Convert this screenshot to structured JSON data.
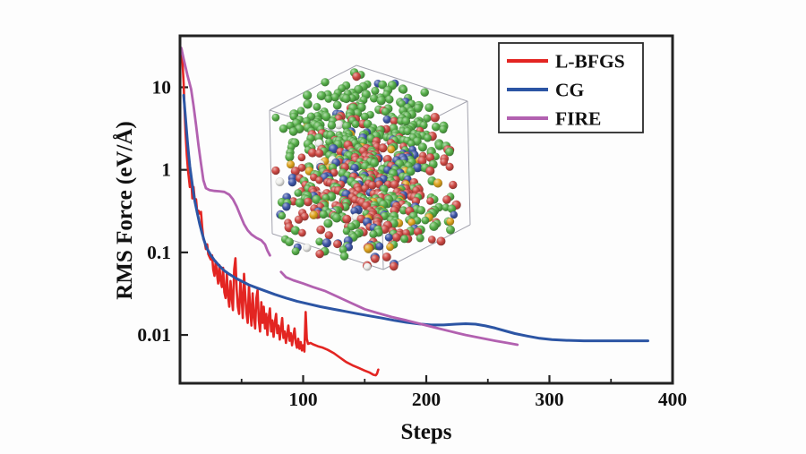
{
  "figure": {
    "background": "#fdfdfd",
    "axis_color": "#222222",
    "tick_label_color": "#111111"
  },
  "chart_data": {
    "type": "line",
    "title": "",
    "xlabel": "Steps",
    "ylabel": "RMS Force (eV/Å)",
    "grid": false,
    "x_axis": {
      "min": 0,
      "max": 400,
      "major_ticks": [
        100,
        200,
        300,
        400
      ],
      "minor_ticks": [
        50,
        150,
        250,
        350
      ]
    },
    "y_axis": {
      "scale": "log",
      "min": 0.0026,
      "max": 42,
      "major_ticks": [
        {
          "value": 10,
          "label": "10"
        },
        {
          "value": 1,
          "label": "1"
        },
        {
          "value": 0.1,
          "label": "0.1"
        },
        {
          "value": 0.01,
          "label": "0.01"
        }
      ]
    },
    "legend": {
      "position": "top-right"
    },
    "series": [
      {
        "name": "L-BFGS",
        "color": "#e32522",
        "width": 2.6,
        "segments": [
          [
            [
              1.5,
              28
            ],
            [
              2,
              20
            ],
            [
              3,
              11
            ],
            [
              3.6,
              6
            ],
            [
              4.5,
              2.8
            ],
            [
              5.5,
              1.5
            ],
            [
              6.5,
              1.0
            ],
            [
              8,
              0.62
            ],
            [
              9,
              0.8
            ],
            [
              10,
              0.45
            ],
            [
              11,
              0.62
            ],
            [
              12,
              0.42
            ],
            [
              13,
              0.44
            ],
            [
              14,
              0.3
            ],
            [
              15,
              0.32
            ],
            [
              16,
              0.295
            ],
            [
              17,
              0.31
            ],
            [
              18,
              0.2
            ],
            [
              19,
              0.145
            ],
            [
              20,
              0.135
            ],
            [
              21,
              0.11
            ],
            [
              22,
              0.125
            ],
            [
              23,
              0.095
            ],
            [
              24,
              0.088
            ],
            [
              25,
              0.082
            ],
            [
              26,
              0.092
            ],
            [
              27,
              0.062
            ],
            [
              28,
              0.052
            ],
            [
              29,
              0.078
            ],
            [
              30,
              0.055
            ],
            [
              31,
              0.042
            ],
            [
              32,
              0.07
            ],
            [
              33,
              0.045
            ],
            [
              34,
              0.038
            ],
            [
              35,
              0.065
            ],
            [
              36,
              0.033
            ],
            [
              37,
              0.028
            ],
            [
              38,
              0.055
            ],
            [
              39,
              0.03
            ],
            [
              40,
              0.022
            ],
            [
              41,
              0.045
            ],
            [
              42,
              0.028
            ],
            [
              43,
              0.02
            ],
            [
              44,
              0.062
            ],
            [
              45,
              0.085
            ],
            [
              46,
              0.035
            ],
            [
              47,
              0.022
            ],
            [
              48,
              0.018
            ],
            [
              49,
              0.045
            ],
            [
              50,
              0.028
            ],
            [
              51,
              0.016
            ],
            [
              52,
              0.055
            ],
            [
              53,
              0.03
            ],
            [
              54,
              0.018
            ],
            [
              55,
              0.014
            ],
            [
              56,
              0.04
            ],
            [
              57,
              0.02
            ],
            [
              58,
              0.013
            ],
            [
              59,
              0.032
            ],
            [
              60,
              0.017
            ],
            [
              61,
              0.012
            ],
            [
              62,
              0.028
            ],
            [
              63,
              0.035
            ],
            [
              64,
              0.015
            ],
            [
              65,
              0.011
            ],
            [
              66,
              0.025
            ],
            [
              67,
              0.014
            ],
            [
              68,
              0.022
            ],
            [
              69,
              0.012
            ],
            [
              70,
              0.018
            ],
            [
              71,
              0.01
            ],
            [
              72,
              0.016
            ],
            [
              73,
              0.021
            ],
            [
              74,
              0.011
            ],
            [
              75,
              0.015
            ],
            [
              76,
              0.0095
            ],
            [
              77,
              0.014
            ],
            [
              78,
              0.018
            ],
            [
              79,
              0.0105
            ],
            [
              80,
              0.013
            ],
            [
              81,
              0.0088
            ],
            [
              82,
              0.012
            ],
            [
              83,
              0.016
            ],
            [
              84,
              0.0092
            ],
            [
              85,
              0.011
            ],
            [
              86,
              0.008
            ],
            [
              87,
              0.01
            ],
            [
              88,
              0.013
            ],
            [
              89,
              0.0085
            ],
            [
              90,
              0.0105
            ],
            [
              91,
              0.0075
            ],
            [
              92,
              0.0095
            ],
            [
              93,
              0.012
            ],
            [
              94,
              0.008
            ],
            [
              95,
              0.007
            ],
            [
              96,
              0.009
            ],
            [
              97,
              0.0068
            ],
            [
              98,
              0.0082
            ],
            [
              99,
              0.0065
            ],
            [
              100,
              0.0075
            ],
            [
              101,
              0.0063
            ],
            [
              102,
              0.019
            ],
            [
              103,
              0.009
            ],
            [
              104,
              0.0078
            ],
            [
              106,
              0.008
            ],
            [
              108,
              0.0077
            ],
            [
              112,
              0.0073
            ],
            [
              116,
              0.007
            ],
            [
              120,
              0.0066
            ],
            [
              125,
              0.006
            ],
            [
              130,
              0.0053
            ],
            [
              135,
              0.0047
            ],
            [
              140,
              0.0043
            ],
            [
              145,
              0.004
            ],
            [
              150,
              0.0037
            ],
            [
              154,
              0.0035
            ],
            [
              157,
              0.0033
            ],
            [
              159,
              0.00325
            ],
            [
              160,
              0.0034
            ],
            [
              161,
              0.0038
            ]
          ]
        ]
      },
      {
        "name": "CG",
        "color": "#2c55a4",
        "width": 3.0,
        "segments": [
          [
            [
              3,
              8
            ],
            [
              4,
              5.2
            ],
            [
              5,
              3.4
            ],
            [
              6,
              2.2
            ],
            [
              7,
              1.55
            ],
            [
              8,
              1.1
            ],
            [
              9,
              0.85
            ],
            [
              10,
              0.66
            ],
            [
              11,
              0.52
            ],
            [
              12,
              0.42
            ],
            [
              14,
              0.3
            ],
            [
              16,
              0.22
            ],
            [
              18,
              0.168
            ],
            [
              20,
              0.133
            ],
            [
              22,
              0.11
            ],
            [
              25,
              0.0925
            ],
            [
              28,
              0.08
            ],
            [
              32,
              0.0685
            ],
            [
              36,
              0.06
            ],
            [
              40,
              0.0545
            ],
            [
              45,
              0.049
            ],
            [
              50,
              0.0448
            ],
            [
              56,
              0.0405
            ],
            [
              62,
              0.0373
            ],
            [
              69,
              0.0342
            ],
            [
              77,
              0.031
            ],
            [
              86,
              0.028
            ],
            [
              95,
              0.0256
            ],
            [
              104,
              0.0238
            ],
            [
              114,
              0.022
            ],
            [
              124,
              0.0206
            ],
            [
              134,
              0.0193
            ],
            [
              144,
              0.0181
            ],
            [
              154,
              0.017
            ],
            [
              164,
              0.016
            ],
            [
              174,
              0.015
            ],
            [
              184,
              0.0142
            ],
            [
              194,
              0.0136
            ],
            [
              204,
              0.0132
            ],
            [
              214,
              0.0132
            ],
            [
              224,
              0.0135
            ],
            [
              232,
              0.0137
            ],
            [
              240,
              0.0135
            ],
            [
              248,
              0.0129
            ],
            [
              256,
              0.0121
            ],
            [
              264,
              0.0112
            ],
            [
              272,
              0.0104
            ],
            [
              282,
              0.0097
            ],
            [
              292,
              0.0091
            ],
            [
              302,
              0.0088
            ],
            [
              314,
              0.0086
            ],
            [
              328,
              0.0085
            ],
            [
              342,
              0.0085
            ],
            [
              356,
              0.0085
            ],
            [
              370,
              0.0085
            ],
            [
              380,
              0.0085
            ]
          ]
        ]
      },
      {
        "name": "FIRE",
        "color": "#b261b0",
        "width": 2.8,
        "segments": [
          [
            [
              1,
              30
            ],
            [
              3,
              22
            ],
            [
              6,
              14
            ],
            [
              9,
              9.5
            ],
            [
              11,
              6.0
            ],
            [
              13,
              3.5
            ],
            [
              15,
              2.0
            ],
            [
              17,
              1.2
            ],
            [
              19,
              0.75
            ],
            [
              21,
              0.6
            ],
            [
              24,
              0.57
            ],
            [
              28,
              0.555
            ],
            [
              32,
              0.55
            ],
            [
              36,
              0.54
            ],
            [
              40,
              0.5
            ],
            [
              43,
              0.44
            ],
            [
              46,
              0.36
            ],
            [
              49,
              0.28
            ],
            [
              52,
              0.22
            ],
            [
              55,
              0.185
            ],
            [
              58,
              0.165
            ],
            [
              62,
              0.15
            ],
            [
              66,
              0.14
            ],
            [
              69,
              0.125
            ],
            [
              71,
              0.105
            ],
            [
              73,
              0.092
            ]
          ],
          [
            [
              82,
              0.058
            ],
            [
              86,
              0.05
            ],
            [
              92,
              0.046
            ],
            [
              100,
              0.042
            ],
            [
              108,
              0.038
            ],
            [
              118,
              0.034
            ],
            [
              128,
              0.029
            ],
            [
              140,
              0.024
            ],
            [
              150,
              0.0205
            ],
            [
              160,
              0.0185
            ],
            [
              172,
              0.0165
            ],
            [
              184,
              0.015
            ],
            [
              196,
              0.0135
            ],
            [
              208,
              0.0122
            ],
            [
              220,
              0.011
            ],
            [
              232,
              0.01
            ],
            [
              244,
              0.0092
            ],
            [
              256,
              0.0085
            ],
            [
              266,
              0.008
            ],
            [
              274,
              0.0076
            ]
          ]
        ]
      }
    ]
  },
  "inset": {
    "label": "relaxed atomic configuration of simulation cell",
    "frame_color": "#a3a3ae",
    "seed": 7,
    "atom_count": 740,
    "atom_radius_min": 4.2,
    "atom_radius_max": 5.2,
    "colors": {
      "green": "#57b04a",
      "red": "#cf4a45",
      "blue": "#3f57a8",
      "yellow": "#dfa41f",
      "white": "#efefec"
    },
    "top_weights": {
      "green": 0.87,
      "red": 0.085,
      "blue": 0.032,
      "yellow": 0.008,
      "white": 0.005
    },
    "bulk_weights": {
      "green": 0.455,
      "red": 0.335,
      "blue": 0.13,
      "yellow": 0.052,
      "white": 0.028
    }
  }
}
